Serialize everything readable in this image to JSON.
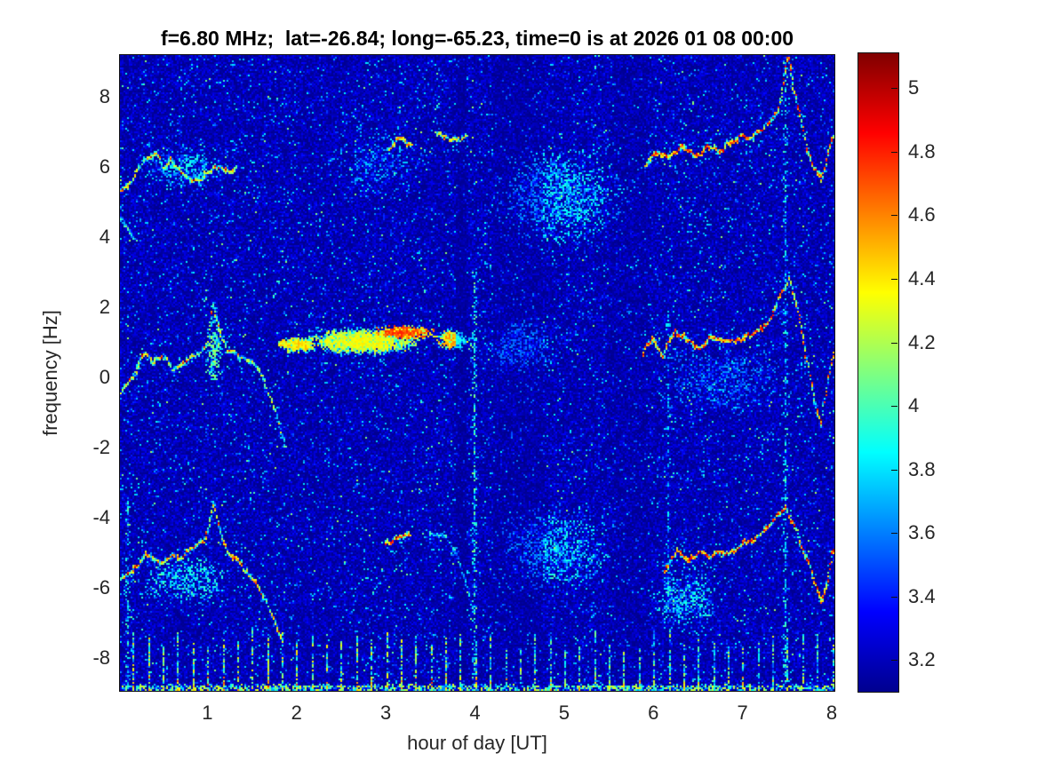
{
  "title": "f=6.80 MHz;  lat=-26.84; long=-65.23, time=0 is at 2026 01 08 00:00",
  "axes": {
    "x": {
      "label": "hour of day [UT]",
      "tick_labels": [
        "1",
        "2",
        "3",
        "4",
        "5",
        "6",
        "7",
        "8"
      ],
      "tick_values": [
        1,
        2,
        3,
        4,
        5,
        6,
        7,
        8
      ],
      "range": [
        0.02,
        8.03
      ]
    },
    "y": {
      "label": "frequency [Hz]",
      "tick_labels": [
        "8",
        "6",
        "4",
        "2",
        "0",
        "-2",
        "-4",
        "-6",
        "-8"
      ],
      "tick_values": [
        8,
        6,
        4,
        2,
        0,
        -2,
        -4,
        -6,
        -8
      ],
      "range": [
        -8.93,
        9.18
      ]
    }
  },
  "colorbar": {
    "tick_labels": [
      "5",
      "4.8",
      "4.6",
      "4.4",
      "4.2",
      "4",
      "3.8",
      "3.6",
      "3.4",
      "3.2"
    ],
    "tick_values": [
      5,
      4.8,
      4.6,
      4.4,
      4.2,
      4,
      3.8,
      3.6,
      3.4,
      3.2
    ],
    "range": [
      3.1,
      5.11
    ],
    "colormap": "jet",
    "anchors": [
      [
        0,
        "#00008F"
      ],
      [
        0.125,
        "#0000FF"
      ],
      [
        0.375,
        "#00FFFF"
      ],
      [
        0.625,
        "#FFFF00"
      ],
      [
        0.875,
        "#FF0000"
      ],
      [
        1,
        "#800000"
      ]
    ]
  },
  "chart_data": {
    "type": "heatmap",
    "title": "f=6.80 MHz;  lat=-26.84; long=-65.23, time=0 is at 2026 01 08 00:00",
    "xlabel": "hour of day [UT]",
    "ylabel": "frequency [Hz]",
    "x_range": [
      0.02,
      8.03
    ],
    "y_range": [
      -8.93,
      9.18
    ],
    "value_range": [
      3.1,
      5.11
    ],
    "background_level": 3.12,
    "noise": {
      "p_mid": 0.2,
      "p_hi": 0.035,
      "p_cyan": 0.004
    },
    "dark_bands": [
      {
        "h0": 4.2,
        "h1": 4.75,
        "f": 0.72
      },
      {
        "h0": 5.5,
        "h1": 5.92,
        "f": 0.8
      },
      {
        "h0": 3.78,
        "h1": 3.88,
        "f": 0.55
      }
    ],
    "clouds": [
      {
        "x": 2.75,
        "y": 1.05,
        "sx": 0.6,
        "sy": 0.35,
        "n": 2800,
        "lo": 3.5,
        "hi": 4.4
      },
      {
        "x": 3.2,
        "y": 1.3,
        "sx": 0.32,
        "sy": 0.18,
        "n": 550,
        "lo": 4.0,
        "hi": 4.8
      },
      {
        "x": 2.0,
        "y": 0.95,
        "sx": 0.22,
        "sy": 0.2,
        "n": 450,
        "lo": 3.7,
        "hi": 4.5
      },
      {
        "x": 3.75,
        "y": 1.1,
        "sx": 0.18,
        "sy": 0.3,
        "n": 350,
        "lo": 3.7,
        "hi": 4.6
      },
      {
        "x": 4.95,
        "y": 5.2,
        "sx": 0.75,
        "sy": 1.5,
        "n": 1600,
        "lo": 3.3,
        "hi": 3.95
      },
      {
        "x": 4.9,
        "y": -4.9,
        "sx": 0.7,
        "sy": 1.2,
        "n": 1100,
        "lo": 3.3,
        "hi": 3.95
      },
      {
        "x": 6.35,
        "y": -6.3,
        "sx": 0.4,
        "sy": 0.9,
        "n": 450,
        "lo": 3.35,
        "hi": 4.0
      },
      {
        "x": 0.8,
        "y": -5.8,
        "sx": 0.55,
        "sy": 0.7,
        "n": 500,
        "lo": 3.35,
        "hi": 4.0
      },
      {
        "x": 0.7,
        "y": 6.0,
        "sx": 0.5,
        "sy": 0.6,
        "n": 350,
        "lo": 3.35,
        "hi": 3.95
      },
      {
        "x": 2.9,
        "y": 6.1,
        "sx": 0.55,
        "sy": 0.9,
        "n": 300,
        "lo": 3.3,
        "hi": 3.8
      },
      {
        "x": 1.07,
        "y": 0.8,
        "sx": 0.1,
        "sy": 1.0,
        "n": 220,
        "lo": 3.5,
        "hi": 4.2
      },
      {
        "x": 6.8,
        "y": 0.0,
        "sx": 0.9,
        "sy": 1.1,
        "n": 700,
        "lo": 3.25,
        "hi": 3.7
      },
      {
        "x": 4.5,
        "y": 0.9,
        "sx": 0.45,
        "sy": 0.8,
        "n": 500,
        "lo": 3.3,
        "hi": 3.85
      }
    ],
    "streaks": [
      {
        "h": 3.98,
        "f0": -8.9,
        "f1": 3.0,
        "n": 260,
        "lo": 3.4,
        "hi": 4.15
      },
      {
        "h": 6.15,
        "f0": -7.0,
        "f1": 2.0,
        "n": 130,
        "lo": 3.3,
        "hi": 3.9
      },
      {
        "h": 7.47,
        "f0": -8.9,
        "f1": 9.1,
        "n": 320,
        "lo": 3.35,
        "hi": 4.05
      },
      {
        "h": 0.1,
        "f0": -8.9,
        "f1": -3.5,
        "n": 90,
        "lo": 3.4,
        "hi": 4.1
      }
    ],
    "comb": {
      "start": 0.1667,
      "step": 0.1667,
      "count": 48,
      "f_bottom": -8.9,
      "top_lo": -7.75,
      "top_hi": -7.1,
      "density": 0.72,
      "lo": 3.55,
      "hi": 4.45,
      "bottom_boost": 0.35,
      "right_fade": 0.18
    },
    "bottom_row": {
      "f": -8.82,
      "jitter": 0.08,
      "n": 1400,
      "lo": 3.3,
      "hi": 4.35
    },
    "traces": [
      {
        "name": "upper-left-band",
        "base": 4.1,
        "var": 0.5,
        "hot": 0.03,
        "points": [
          [
            0.02,
            5.3
          ],
          [
            0.18,
            5.85
          ],
          [
            0.32,
            6.35
          ],
          [
            0.42,
            6.5
          ],
          [
            0.5,
            6.05
          ],
          [
            0.58,
            6.35
          ],
          [
            0.7,
            6.0
          ],
          [
            0.82,
            5.75
          ],
          [
            0.95,
            5.85
          ],
          [
            1.08,
            6.2
          ],
          [
            1.2,
            5.9
          ],
          [
            1.32,
            6.15
          ]
        ]
      },
      {
        "name": "upper-left-arc",
        "base": 3.8,
        "var": 0.3,
        "hot": 0,
        "points": [
          [
            0.02,
            4.6
          ],
          [
            0.1,
            4.2
          ],
          [
            0.17,
            3.95
          ]
        ]
      },
      {
        "name": "upper-mid-a",
        "base": 4.2,
        "var": 0.5,
        "hot": 0.05,
        "points": [
          [
            3.03,
            6.4
          ],
          [
            3.14,
            6.7
          ],
          [
            3.28,
            6.62
          ]
        ]
      },
      {
        "name": "upper-mid-b",
        "base": 4.1,
        "var": 0.4,
        "hot": 0.03,
        "points": [
          [
            3.55,
            6.95
          ],
          [
            3.73,
            6.85
          ],
          [
            3.9,
            6.78
          ]
        ]
      },
      {
        "name": "upper-right-band",
        "base": 4.3,
        "var": 0.6,
        "hot": 0.12,
        "points": [
          [
            5.9,
            6.1
          ],
          [
            6.03,
            6.45
          ],
          [
            6.17,
            6.2
          ],
          [
            6.32,
            6.55
          ],
          [
            6.47,
            6.4
          ],
          [
            6.6,
            6.7
          ],
          [
            6.74,
            6.5
          ],
          [
            6.88,
            6.7
          ],
          [
            7.02,
            6.8
          ],
          [
            7.16,
            6.95
          ],
          [
            7.28,
            7.2
          ],
          [
            7.4,
            7.7
          ],
          [
            7.5,
            9.1
          ],
          [
            7.56,
            8.1
          ],
          [
            7.63,
            7.4
          ],
          [
            7.72,
            6.5
          ],
          [
            7.81,
            5.9
          ],
          [
            7.88,
            5.5
          ],
          [
            7.96,
            6.3
          ],
          [
            8.03,
            7.0
          ]
        ]
      },
      {
        "name": "center-left-band",
        "base": 4.0,
        "var": 0.5,
        "hot": 0.04,
        "points": [
          [
            0.02,
            -0.45
          ],
          [
            0.12,
            0.1
          ],
          [
            0.28,
            0.6
          ],
          [
            0.4,
            0.35
          ],
          [
            0.52,
            0.6
          ],
          [
            0.62,
            0.3
          ],
          [
            0.75,
            0.6
          ],
          [
            0.88,
            0.8
          ],
          [
            1.0,
            1.2
          ],
          [
            1.06,
            2.2
          ],
          [
            1.13,
            1.5
          ],
          [
            1.22,
            0.8
          ],
          [
            1.35,
            0.6
          ],
          [
            1.5,
            0.55
          ],
          [
            1.62,
            0.1
          ],
          [
            1.75,
            -0.9
          ],
          [
            1.87,
            -2.1
          ]
        ]
      },
      {
        "name": "center-right-band",
        "base": 4.3,
        "var": 0.6,
        "hot": 0.12,
        "points": [
          [
            5.88,
            0.7
          ],
          [
            6.0,
            1.0
          ],
          [
            6.1,
            0.6
          ],
          [
            6.23,
            1.25
          ],
          [
            6.37,
            0.95
          ],
          [
            6.5,
            0.8
          ],
          [
            6.63,
            1.05
          ],
          [
            6.77,
            0.9
          ],
          [
            6.92,
            1.0
          ],
          [
            7.06,
            1.1
          ],
          [
            7.2,
            1.25
          ],
          [
            7.32,
            1.6
          ],
          [
            7.44,
            2.4
          ],
          [
            7.52,
            2.9
          ],
          [
            7.6,
            1.9
          ],
          [
            7.7,
            0.6
          ],
          [
            7.8,
            -0.6
          ],
          [
            7.87,
            -1.4
          ],
          [
            7.96,
            -0.1
          ],
          [
            8.03,
            0.8
          ]
        ]
      },
      {
        "name": "lower-left-band",
        "base": 4.1,
        "var": 0.6,
        "hot": 0.06,
        "points": [
          [
            0.02,
            -5.75
          ],
          [
            0.15,
            -5.35
          ],
          [
            0.3,
            -4.95
          ],
          [
            0.45,
            -5.25
          ],
          [
            0.58,
            -5.05
          ],
          [
            0.72,
            -5.2
          ],
          [
            0.85,
            -4.95
          ],
          [
            0.97,
            -4.7
          ],
          [
            1.06,
            -3.7
          ],
          [
            1.14,
            -4.45
          ],
          [
            1.25,
            -5.0
          ],
          [
            1.4,
            -5.35
          ],
          [
            1.55,
            -5.9
          ],
          [
            1.7,
            -6.6
          ],
          [
            1.82,
            -7.4
          ]
        ]
      },
      {
        "name": "lower-mid",
        "base": 4.4,
        "var": 0.5,
        "hot": 0.15,
        "points": [
          [
            2.98,
            -4.75
          ],
          [
            3.1,
            -4.5
          ],
          [
            3.26,
            -4.6
          ]
        ]
      },
      {
        "name": "lower-mid-arc",
        "base": 3.7,
        "var": 0.35,
        "hot": 0,
        "points": [
          [
            3.48,
            -4.35
          ],
          [
            3.62,
            -4.5
          ],
          [
            3.76,
            -5.0
          ],
          [
            3.88,
            -5.9
          ],
          [
            3.98,
            -6.9
          ]
        ]
      },
      {
        "name": "lower-right-band",
        "base": 4.3,
        "var": 0.65,
        "hot": 0.14,
        "points": [
          [
            6.12,
            -5.5
          ],
          [
            6.25,
            -4.95
          ],
          [
            6.38,
            -5.35
          ],
          [
            6.52,
            -5.1
          ],
          [
            6.66,
            -4.95
          ],
          [
            6.8,
            -5.05
          ],
          [
            6.95,
            -4.7
          ],
          [
            7.1,
            -4.5
          ],
          [
            7.25,
            -4.15
          ],
          [
            7.38,
            -3.8
          ],
          [
            7.47,
            -3.5
          ],
          [
            7.58,
            -4.2
          ],
          [
            7.7,
            -5.2
          ],
          [
            7.8,
            -5.9
          ],
          [
            7.88,
            -6.35
          ],
          [
            7.96,
            -5.4
          ],
          [
            8.03,
            -4.6
          ]
        ]
      }
    ]
  }
}
